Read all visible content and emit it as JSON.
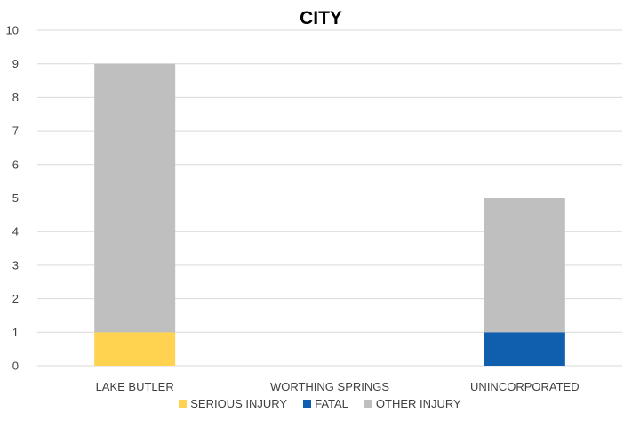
{
  "chart_data": {
    "type": "bar",
    "stacked": true,
    "title": "CITY",
    "xlabel": "",
    "ylabel": "",
    "ylim": [
      0,
      10
    ],
    "yticks": [
      0,
      1,
      2,
      3,
      4,
      5,
      6,
      7,
      8,
      9,
      10
    ],
    "grid": true,
    "legend_position": "bottom",
    "categories": [
      "LAKE BUTLER",
      "WORTHING SPRINGS",
      "UNINCORPORATED"
    ],
    "series": [
      {
        "name": "SERIOUS INJURY",
        "color": "#FFD24F",
        "values": [
          1,
          0,
          0
        ]
      },
      {
        "name": "FATAL",
        "color": "#0F5FAE",
        "values": [
          0,
          0,
          1
        ]
      },
      {
        "name": "OTHER INJURY",
        "color": "#BFBFBF",
        "values": [
          8,
          0,
          4
        ]
      }
    ]
  }
}
